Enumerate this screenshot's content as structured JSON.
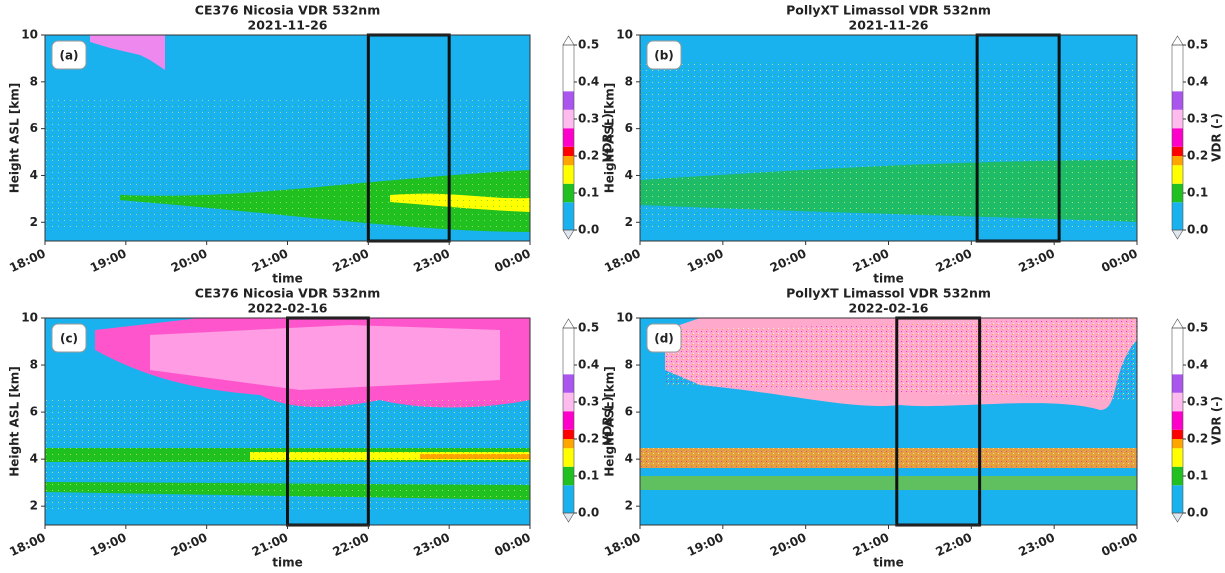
{
  "chart_data": [
    {
      "type": "heatmap",
      "title": "CE376 Nicosia VDR 532nm",
      "subtitle": "2021-11-26",
      "panel_label": "(a)",
      "xlabel": "time",
      "ylabel": "Height ASL [km]",
      "xlim": [
        18,
        24
      ],
      "xticks": [
        {
          "value": 18,
          "label": "18:00"
        },
        {
          "value": 19,
          "label": "19:00"
        },
        {
          "value": 20,
          "label": "20:00"
        },
        {
          "value": 21,
          "label": "21:00"
        },
        {
          "value": 22,
          "label": "22:00"
        },
        {
          "value": 23,
          "label": "23:00"
        },
        {
          "value": 24,
          "label": "00:00"
        }
      ],
      "ylim": [
        1.2,
        10
      ],
      "yticks": [
        2,
        4,
        6,
        8,
        10
      ],
      "highlight": [
        22,
        23
      ],
      "colorbar": {
        "label": "VDR (-)",
        "ticks": [
          {
            "value": 0,
            "label": "0.0"
          },
          0.1,
          0.2,
          0.3,
          0.4,
          0.5
        ],
        "boundaries": [
          0,
          0.075,
          0.125,
          0.175,
          0.2,
          0.225,
          0.275,
          0.325,
          0.375,
          0.5
        ],
        "colors": [
          "#1ab2ee",
          "#20c020",
          "#ffff00",
          "#ffa500",
          "#ff0000",
          "#ff00cc",
          "#ffbbee",
          "#aa55ee",
          "#ffffff"
        ],
        "under_color": "#dfe8f0",
        "over_color": "#ffffff"
      }
    },
    {
      "type": "heatmap",
      "title": "PollyXT Limassol VDR 532nm",
      "subtitle": "2021-11-26",
      "panel_label": "(b)",
      "xlabel": "time",
      "ylabel": "Height ASL [km]",
      "xlim": [
        18,
        24
      ],
      "xticks": [
        {
          "value": 18,
          "label": "18:00"
        },
        {
          "value": 19,
          "label": "19:00"
        },
        {
          "value": 20,
          "label": "20:00"
        },
        {
          "value": 21,
          "label": "21:00"
        },
        {
          "value": 22,
          "label": "22:00"
        },
        {
          "value": 23,
          "label": "23:00"
        },
        {
          "value": 24,
          "label": "00:00"
        }
      ],
      "ylim": [
        1.2,
        10
      ],
      "yticks": [
        2,
        4,
        6,
        8,
        10
      ],
      "highlight": [
        22.07,
        23.06
      ],
      "colorbar": {
        "label": "VDR (-)",
        "ticks": [
          {
            "value": 0,
            "label": "0.0"
          },
          0.1,
          0.2,
          0.3,
          0.4,
          0.5
        ],
        "boundaries": [
          0,
          0.075,
          0.125,
          0.175,
          0.2,
          0.225,
          0.275,
          0.325,
          0.375,
          0.5
        ],
        "colors": [
          "#1ab2ee",
          "#20c020",
          "#ffff00",
          "#ffa500",
          "#ff0000",
          "#ff00cc",
          "#ffbbee",
          "#aa55ee",
          "#ffffff"
        ],
        "under_color": "#dfe8f0",
        "over_color": "#ffffff"
      }
    },
    {
      "type": "heatmap",
      "title": "CE376 Nicosia VDR 532nm",
      "subtitle": "2022-02-16",
      "panel_label": "(c)",
      "xlabel": "time",
      "ylabel": "Height ASL [km]",
      "xlim": [
        18,
        24
      ],
      "xticks": [
        {
          "value": 18,
          "label": "18:00"
        },
        {
          "value": 19,
          "label": "19:00"
        },
        {
          "value": 20,
          "label": "20:00"
        },
        {
          "value": 21,
          "label": "21:00"
        },
        {
          "value": 22,
          "label": "22:00"
        },
        {
          "value": 23,
          "label": "23:00"
        },
        {
          "value": 24,
          "label": "00:00"
        }
      ],
      "ylim": [
        1.2,
        10
      ],
      "yticks": [
        2,
        4,
        6,
        8,
        10
      ],
      "highlight": [
        21,
        22
      ],
      "colorbar": {
        "label": "VDR (-)",
        "ticks": [
          {
            "value": 0,
            "label": "0.0"
          },
          0.1,
          0.2,
          0.3,
          0.4,
          0.5
        ],
        "boundaries": [
          0,
          0.075,
          0.125,
          0.175,
          0.2,
          0.225,
          0.275,
          0.325,
          0.375,
          0.5
        ],
        "colors": [
          "#1ab2ee",
          "#20c020",
          "#ffff00",
          "#ffa500",
          "#ff0000",
          "#ff00cc",
          "#ffbbee",
          "#aa55ee",
          "#ffffff"
        ],
        "under_color": "#dfe8f0",
        "over_color": "#ffffff"
      }
    },
    {
      "type": "heatmap",
      "title": "PollyXT Limassol VDR 532nm",
      "subtitle": "2022-02-16",
      "panel_label": "(d)",
      "xlabel": "time",
      "ylabel": "Height ASL [km]",
      "xlim": [
        18,
        24
      ],
      "xticks": [
        {
          "value": 18,
          "label": "18:00"
        },
        {
          "value": 19,
          "label": "19:00"
        },
        {
          "value": 20,
          "label": "20:00"
        },
        {
          "value": 21,
          "label": "21:00"
        },
        {
          "value": 22,
          "label": "22:00"
        },
        {
          "value": 23,
          "label": "23:00"
        },
        {
          "value": 24,
          "label": "00:00"
        }
      ],
      "ylim": [
        1.2,
        10
      ],
      "yticks": [
        2,
        4,
        6,
        8,
        10
      ],
      "highlight": [
        21.1,
        22.1
      ],
      "colorbar": {
        "label": "VDR (-)",
        "ticks": [
          {
            "value": 0,
            "label": "0.0"
          },
          0.1,
          0.2,
          0.3,
          0.4,
          0.5
        ],
        "boundaries": [
          0,
          0.075,
          0.125,
          0.175,
          0.2,
          0.225,
          0.275,
          0.325,
          0.375,
          0.5
        ],
        "colors": [
          "#1ab2ee",
          "#20c020",
          "#ffff00",
          "#ffa500",
          "#ff0000",
          "#ff00cc",
          "#ffbbee",
          "#aa55ee",
          "#ffffff"
        ],
        "under_color": "#dfe8f0",
        "over_color": "#ffffff"
      }
    }
  ]
}
